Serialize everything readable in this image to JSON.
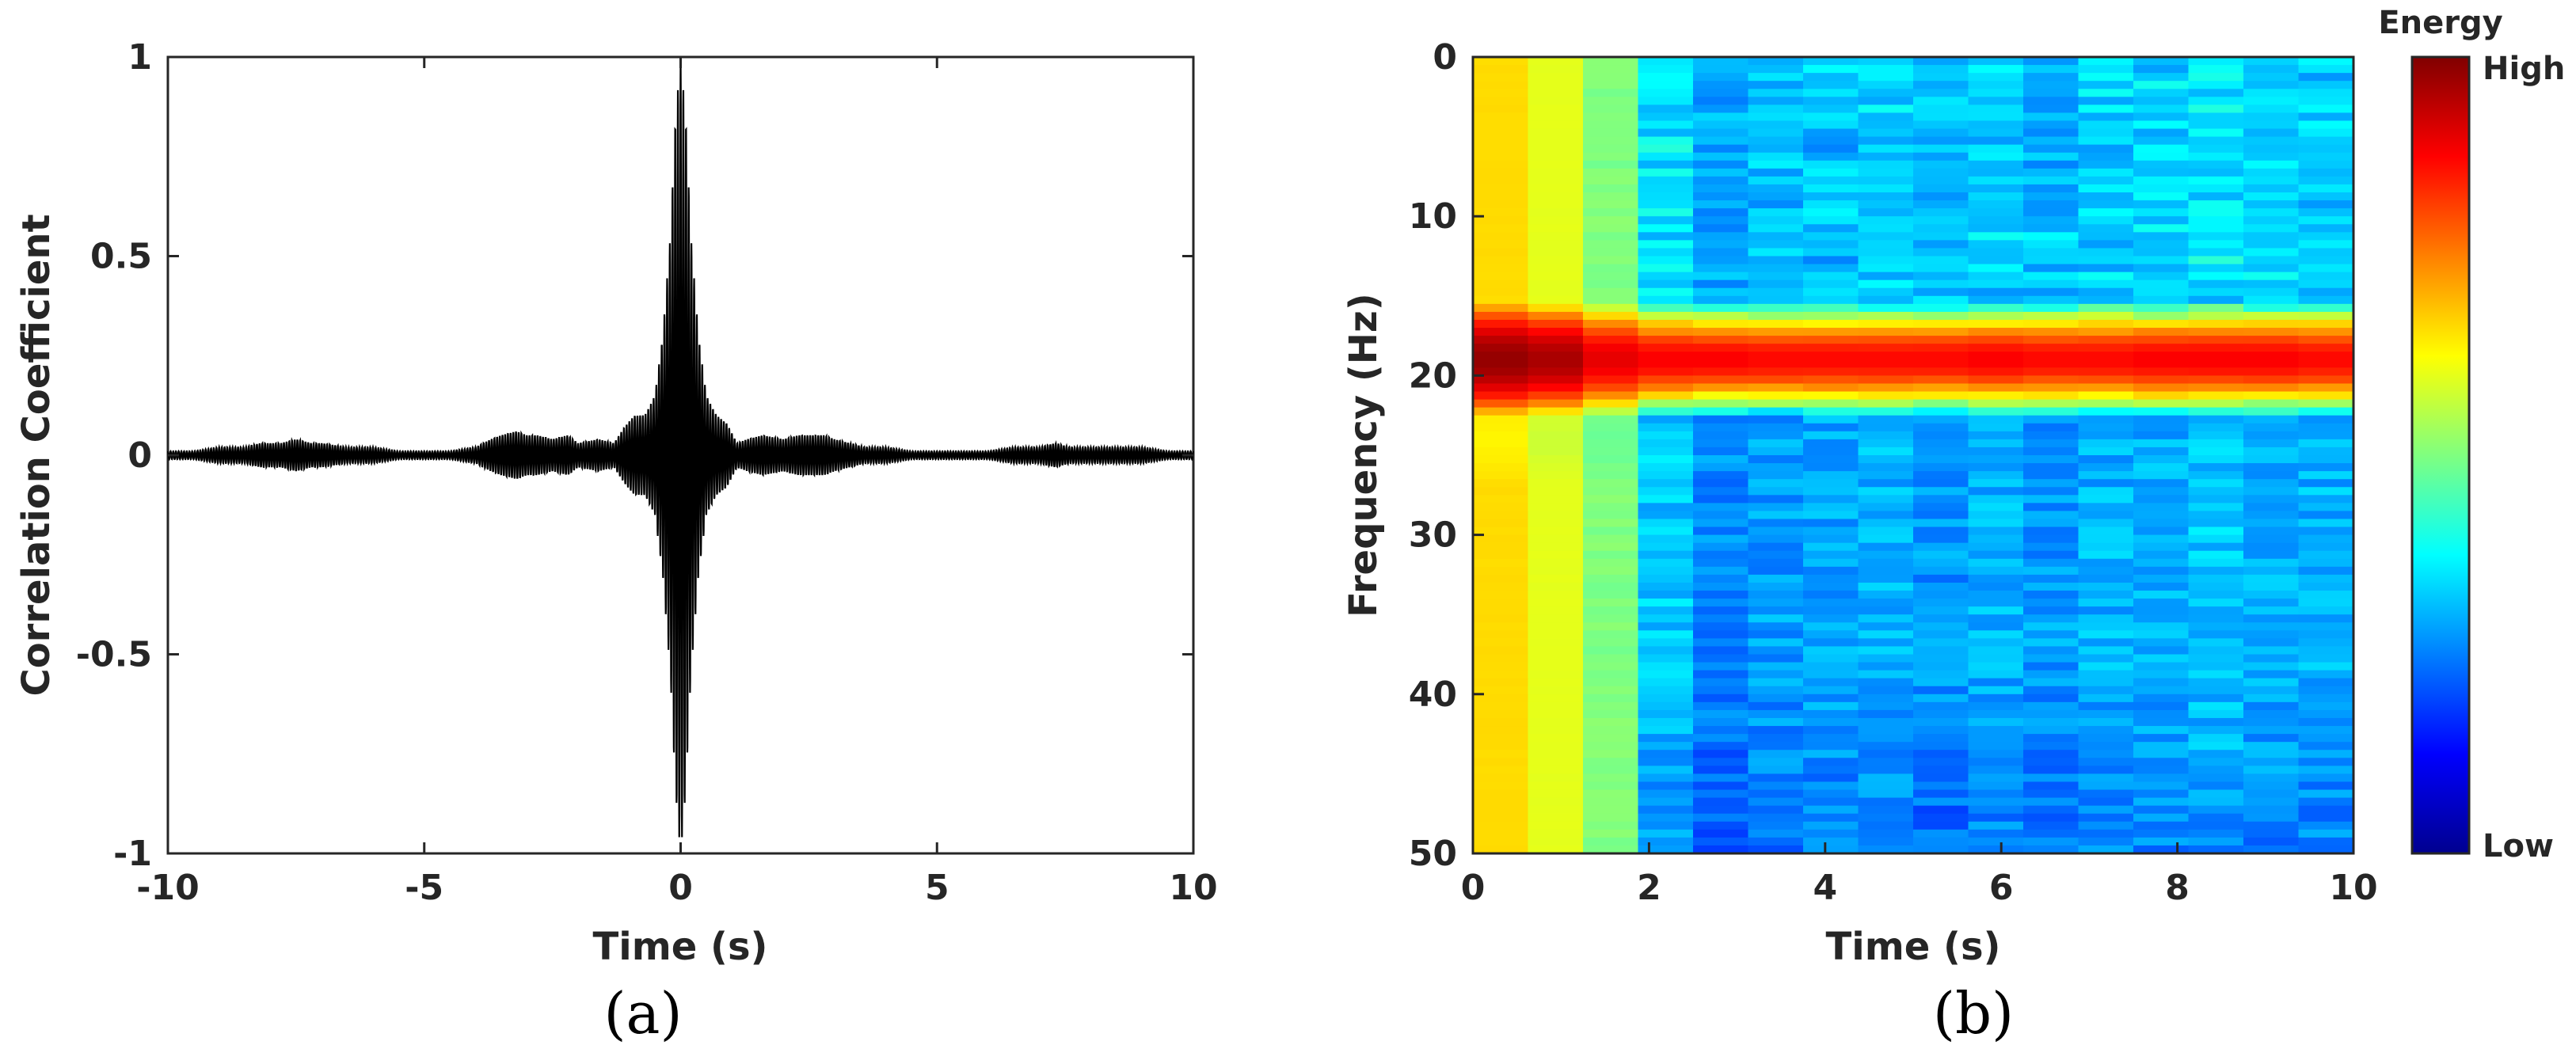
{
  "chart_data": [
    {
      "type": "line",
      "panel_label": "(a)",
      "title": "",
      "xlabel": "Time (s)",
      "ylabel": "Correlation Coefficient",
      "xlim": [
        -10,
        10
      ],
      "ylim": [
        -1,
        1
      ],
      "x_ticks": [
        -10,
        -5,
        0,
        5,
        10
      ],
      "y_ticks": [
        1,
        0.5,
        0,
        -0.5,
        -1
      ],
      "grid": false,
      "color": "#000000",
      "series": [
        {
          "envelope_x": [
            -10,
            -9.5,
            -9,
            -8.5,
            -8.2,
            -7.8,
            -7.5,
            -7.2,
            -7,
            -6.5,
            -6,
            -5.5,
            -5,
            -4.5,
            -4,
            -3.7,
            -3.5,
            -3.2,
            -3,
            -2.8,
            -2.5,
            -2.2,
            -2,
            -1.6,
            -1.3,
            -1.1,
            -0.9,
            -0.7,
            -0.5,
            -0.35,
            -0.2,
            -0.1,
            0,
            0.1,
            0.2,
            0.35,
            0.5,
            0.7,
            0.9,
            1.1,
            1.3,
            1.6,
            2,
            2.3,
            2.5,
            2.8,
            3,
            3.3,
            3.6,
            4,
            4.5,
            5,
            5.5,
            6,
            6.5,
            7,
            7.3,
            7.6,
            8,
            8.5,
            9,
            9.5,
            10
          ],
          "envelope_y": [
            0.01,
            0.01,
            0.02,
            0.02,
            0.03,
            0.03,
            0.04,
            0.03,
            0.03,
            0.02,
            0.02,
            0.01,
            0.01,
            0.01,
            0.02,
            0.04,
            0.05,
            0.06,
            0.05,
            0.05,
            0.04,
            0.05,
            0.03,
            0.04,
            0.03,
            0.07,
            0.1,
            0.1,
            0.15,
            0.3,
            0.55,
            0.85,
            1.0,
            0.85,
            0.55,
            0.3,
            0.15,
            0.1,
            0.08,
            0.03,
            0.04,
            0.05,
            0.04,
            0.05,
            0.05,
            0.05,
            0.04,
            0.03,
            0.02,
            0.02,
            0.01,
            0.01,
            0.01,
            0.01,
            0.02,
            0.02,
            0.03,
            0.02,
            0.02,
            0.02,
            0.02,
            0.01,
            0.01
          ]
        }
      ]
    },
    {
      "type": "heatmap",
      "panel_label": "(b)",
      "title": "",
      "xlabel": "Time (s)",
      "ylabel": "Frequency (Hz)",
      "xlim": [
        0,
        10
      ],
      "ylim": [
        50,
        0
      ],
      "x_ticks": [
        0,
        2,
        4,
        6,
        8,
        10
      ],
      "y_ticks": [
        0,
        10,
        20,
        30,
        40,
        50
      ],
      "colorbar": {
        "title": "Energy",
        "high_label": "High",
        "low_label": "Low",
        "colormap": "jet"
      },
      "time_columns": [
        0.32,
        0.96,
        1.6,
        2.24,
        2.88,
        3.52,
        4.16,
        4.8,
        5.44,
        6.08,
        6.72,
        7.36,
        8.0,
        8.64,
        9.28,
        9.84
      ],
      "frequency_bins_hz": [
        0,
        17,
        18,
        20,
        21,
        25,
        50
      ],
      "column_baseline_energy": [
        0.66,
        0.6,
        0.5,
        0.32,
        0.26,
        0.28,
        0.29,
        0.3,
        0.27,
        0.3,
        0.28,
        0.3,
        0.3,
        0.32,
        0.3,
        0.3
      ],
      "band_peak_energy": [
        0.98,
        0.96,
        0.9,
        0.88,
        0.88,
        0.87,
        0.87,
        0.87,
        0.87,
        0.88,
        0.87,
        0.87,
        0.88,
        0.88,
        0.88,
        0.87
      ],
      "band_center_hz": 19,
      "band_width_hz": 3.5
    }
  ]
}
